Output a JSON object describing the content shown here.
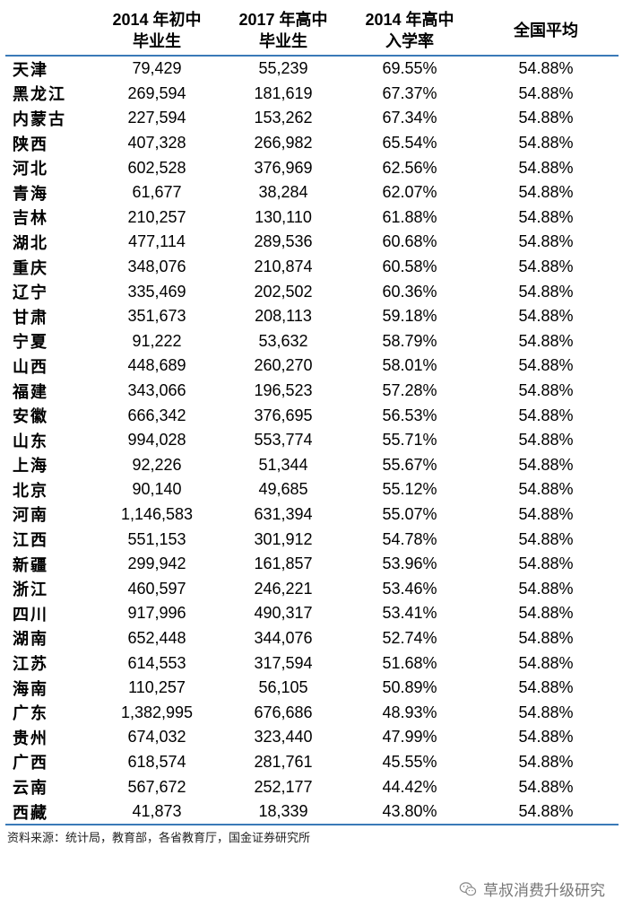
{
  "header": {
    "col0": "",
    "col1_line1": "2014 年初中",
    "col1_line2": "毕业生",
    "col2_line1": "2017 年高中",
    "col2_line2": "毕业生",
    "col3_line1": "2014 年高中",
    "col3_line2": "入学率",
    "col4": "全国平均"
  },
  "rows": [
    [
      "天津",
      "79,429",
      "55,239",
      "69.55%",
      "54.88%"
    ],
    [
      "黑龙江",
      "269,594",
      "181,619",
      "67.37%",
      "54.88%"
    ],
    [
      "内蒙古",
      "227,594",
      "153,262",
      "67.34%",
      "54.88%"
    ],
    [
      "陕西",
      "407,328",
      "266,982",
      "65.54%",
      "54.88%"
    ],
    [
      "河北",
      "602,528",
      "376,969",
      "62.56%",
      "54.88%"
    ],
    [
      "青海",
      "61,677",
      "38,284",
      "62.07%",
      "54.88%"
    ],
    [
      "吉林",
      "210,257",
      "130,110",
      "61.88%",
      "54.88%"
    ],
    [
      "湖北",
      "477,114",
      "289,536",
      "60.68%",
      "54.88%"
    ],
    [
      "重庆",
      "348,076",
      "210,874",
      "60.58%",
      "54.88%"
    ],
    [
      "辽宁",
      "335,469",
      "202,502",
      "60.36%",
      "54.88%"
    ],
    [
      "甘肃",
      "351,673",
      "208,113",
      "59.18%",
      "54.88%"
    ],
    [
      "宁夏",
      "91,222",
      "53,632",
      "58.79%",
      "54.88%"
    ],
    [
      "山西",
      "448,689",
      "260,270",
      "58.01%",
      "54.88%"
    ],
    [
      "福建",
      "343,066",
      "196,523",
      "57.28%",
      "54.88%"
    ],
    [
      "安徽",
      "666,342",
      "376,695",
      "56.53%",
      "54.88%"
    ],
    [
      "山东",
      "994,028",
      "553,774",
      "55.71%",
      "54.88%"
    ],
    [
      "上海",
      "92,226",
      "51,344",
      "55.67%",
      "54.88%"
    ],
    [
      "北京",
      "90,140",
      "49,685",
      "55.12%",
      "54.88%"
    ],
    [
      "河南",
      "1,146,583",
      "631,394",
      "55.07%",
      "54.88%"
    ],
    [
      "江西",
      "551,153",
      "301,912",
      "54.78%",
      "54.88%"
    ],
    [
      "新疆",
      "299,942",
      "161,857",
      "53.96%",
      "54.88%"
    ],
    [
      "浙江",
      "460,597",
      "246,221",
      "53.46%",
      "54.88%"
    ],
    [
      "四川",
      "917,996",
      "490,317",
      "53.41%",
      "54.88%"
    ],
    [
      "湖南",
      "652,448",
      "344,076",
      "52.74%",
      "54.88%"
    ],
    [
      "江苏",
      "614,553",
      "317,594",
      "51.68%",
      "54.88%"
    ],
    [
      "海南",
      "110,257",
      "56,105",
      "50.89%",
      "54.88%"
    ],
    [
      "广东",
      "1,382,995",
      "676,686",
      "48.93%",
      "54.88%"
    ],
    [
      "贵州",
      "674,032",
      "323,440",
      "47.99%",
      "54.88%"
    ],
    [
      "广西",
      "618,574",
      "281,761",
      "45.55%",
      "54.88%"
    ],
    [
      "云南",
      "567,672",
      "252,177",
      "44.42%",
      "54.88%"
    ],
    [
      "西藏",
      "41,873",
      "18,339",
      "43.80%",
      "54.88%"
    ]
  ],
  "source": "资料来源：统计局，教育部，各省教育厅，国金证券研究所",
  "watermark": {
    "text": "草叔消费升级研究",
    "icon": "wechat-icon"
  },
  "colors": {
    "rule": "#3a7ab8",
    "watermark": "#777777"
  }
}
